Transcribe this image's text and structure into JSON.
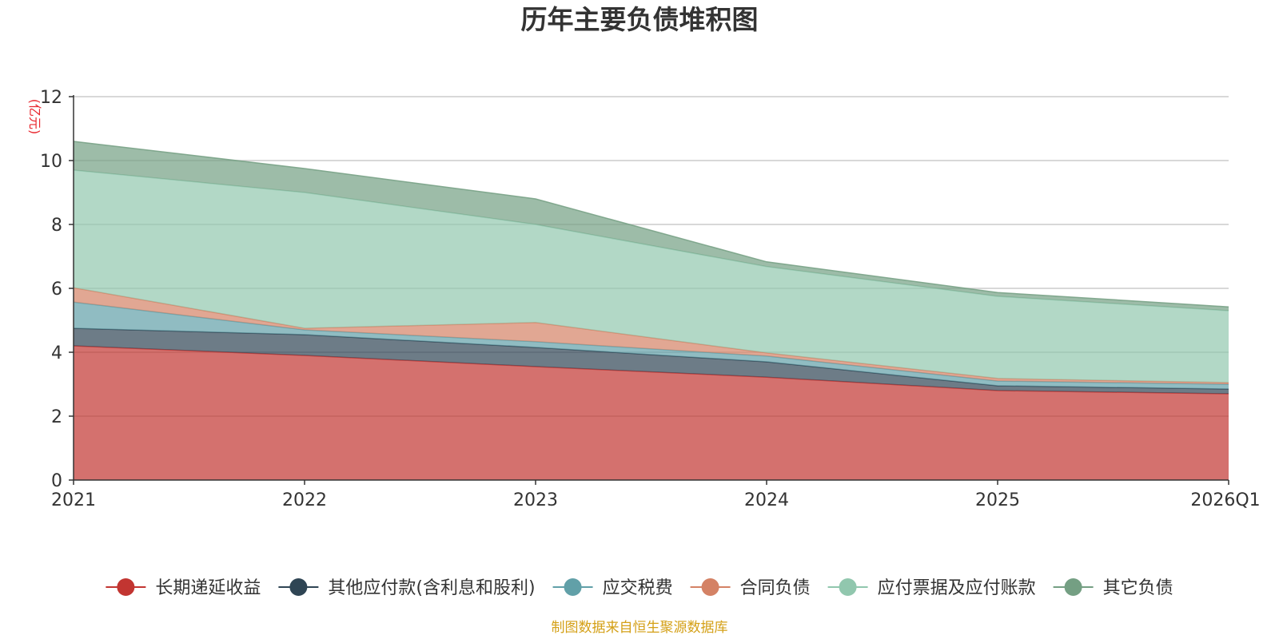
{
  "chart_data": {
    "type": "area",
    "stacked": true,
    "title": "历年主要负债堆积图",
    "ylabel": "(亿元)",
    "xlabel": "",
    "categories": [
      "2021",
      "2022",
      "2023",
      "2024",
      "2025",
      "2026Q1"
    ],
    "ylim": [
      0,
      12
    ],
    "yticks": [
      0,
      2,
      4,
      6,
      8,
      10,
      12
    ],
    "grid": true,
    "legend_position": "bottom",
    "series": [
      {
        "name": "长期递延收益",
        "color": "#c23531",
        "values": [
          4.2,
          3.9,
          3.55,
          3.22,
          2.8,
          2.7
        ]
      },
      {
        "name": "其他应付款(含利息和股利)",
        "color": "#2f4554",
        "values": [
          0.55,
          0.65,
          0.6,
          0.48,
          0.15,
          0.15
        ]
      },
      {
        "name": "应交税费",
        "color": "#61a0a8",
        "values": [
          0.82,
          0.15,
          0.18,
          0.18,
          0.15,
          0.15
        ]
      },
      {
        "name": "合同负债",
        "color": "#d48265",
        "values": [
          0.45,
          0.05,
          0.6,
          0.1,
          0.08,
          0.05
        ]
      },
      {
        "name": "应付票据及应付账款",
        "color": "#91c7ae",
        "values": [
          3.68,
          4.25,
          3.07,
          2.7,
          2.57,
          2.25
        ]
      },
      {
        "name": "其它负债",
        "color": "#749f83",
        "values": [
          0.9,
          0.75,
          0.8,
          0.15,
          0.12,
          0.12
        ]
      }
    ],
    "source_note": "制图数据来自恒生聚源数据库"
  },
  "colors": {
    "title": "#333333",
    "ylabel": "#e8262d",
    "axis": "#333333",
    "grid": "#cccccc",
    "source": "#d4a017"
  }
}
